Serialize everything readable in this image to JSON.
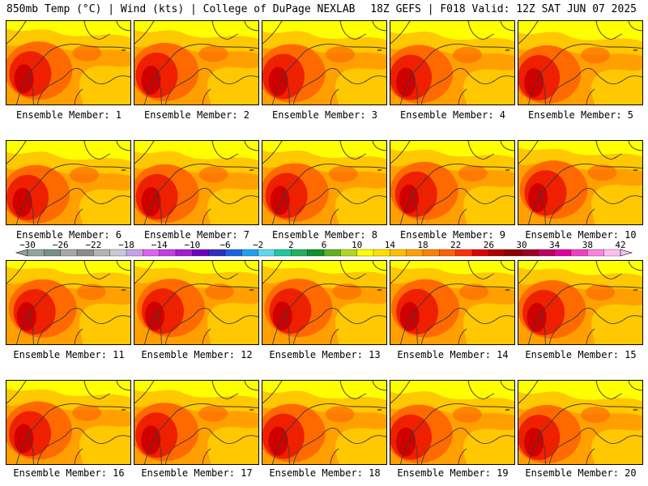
{
  "header": {
    "left": "850mb Temp (°C) | Wind (kts) | College of DuPage NEXLAB",
    "right": "18Z GEFS | F018 Valid: 12Z SAT JUN 07 2025"
  },
  "members": [
    {
      "label": "Ensemble Member: 1"
    },
    {
      "label": "Ensemble Member: 2"
    },
    {
      "label": "Ensemble Member: 3"
    },
    {
      "label": "Ensemble Member: 4"
    },
    {
      "label": "Ensemble Member: 5"
    },
    {
      "label": "Ensemble Member: 6"
    },
    {
      "label": "Ensemble Member: 7"
    },
    {
      "label": "Ensemble Member: 8"
    },
    {
      "label": "Ensemble Member: 9"
    },
    {
      "label": "Ensemble Member: 10"
    },
    {
      "label": "Ensemble Member: 11"
    },
    {
      "label": "Ensemble Member: 12"
    },
    {
      "label": "Ensemble Member: 13"
    },
    {
      "label": "Ensemble Member: 14"
    },
    {
      "label": "Ensemble Member: 15"
    },
    {
      "label": "Ensemble Member: 16"
    },
    {
      "label": "Ensemble Member: 17"
    },
    {
      "label": "Ensemble Member: 18"
    },
    {
      "label": "Ensemble Member: 19"
    },
    {
      "label": "Ensemble Member: 20"
    }
  ],
  "colorbar": {
    "tick_labels": [
      "-30",
      "-26",
      "-22",
      "-18",
      "-14",
      "-10",
      "-6",
      "-2",
      "2",
      "6",
      "10",
      "14",
      "18",
      "22",
      "26",
      "30",
      "34",
      "38",
      "42"
    ],
    "colors": [
      "#8fa3a0",
      "#7a8e8a",
      "#a8a8a8",
      "#8c8c8c",
      "#b4b4b4",
      "#c8c8d8",
      "#c8a0e8",
      "#e060f0",
      "#c040e0",
      "#a020d0",
      "#7000c0",
      "#3030c0",
      "#2060e0",
      "#20a0f0",
      "#60d8f0",
      "#20c8a0",
      "#20b060",
      "#109030",
      "#60b020",
      "#b0d820",
      "#ffff00",
      "#ffe000",
      "#ffc000",
      "#ffa000",
      "#ff8000",
      "#ff6000",
      "#ff3000",
      "#e00000",
      "#b00000",
      "#900000",
      "#a00020",
      "#c00060",
      "#e000a0",
      "#f040c0",
      "#ff80e0",
      "#ffc0f0"
    ]
  },
  "map_colors": [
    "#ffff00",
    "#ffc800",
    "#ffa000",
    "#ff6a00",
    "#ee2000",
    "#d00000"
  ]
}
